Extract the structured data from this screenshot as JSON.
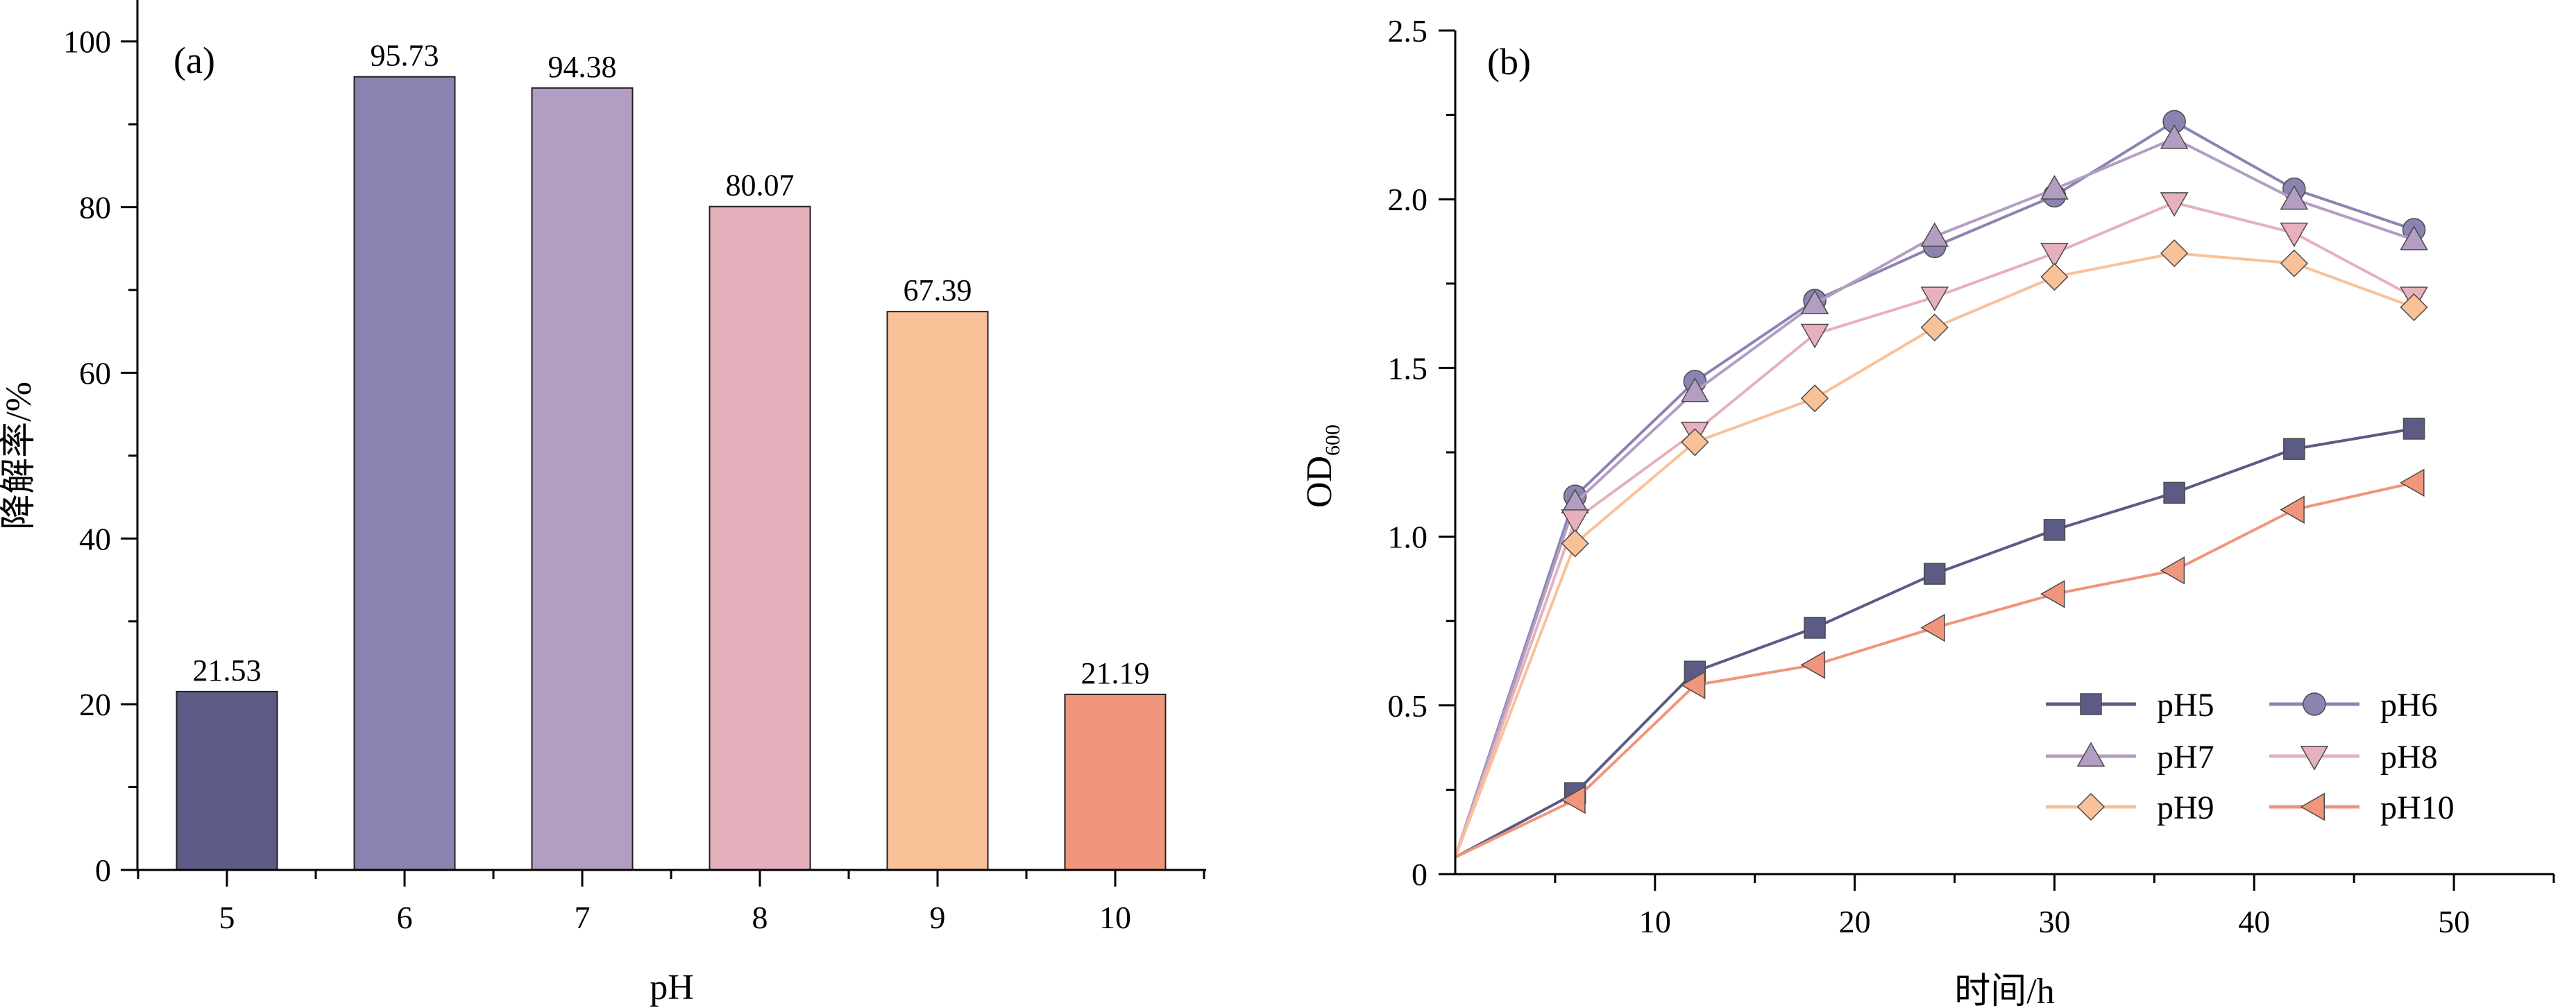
{
  "chart_data": [
    {
      "type": "bar",
      "panel_label": "(a)",
      "categories": [
        "5",
        "6",
        "7",
        "8",
        "9",
        "10"
      ],
      "values": [
        21.53,
        95.73,
        94.38,
        80.07,
        67.39,
        21.19
      ],
      "data_labels": [
        "21.53",
        "95.73",
        "94.38",
        "80.07",
        "67.39",
        "21.19"
      ],
      "colors": [
        "#5b5b86",
        "#8b84b1",
        "#b39dc2",
        "#e6b0bd",
        "#f9c198",
        "#ef967c"
      ],
      "xlabel": "pH",
      "ylabel": "降解率/%",
      "ylim": [
        0,
        105
      ],
      "yticks": [
        "0",
        "20",
        "40",
        "60",
        "80",
        "100"
      ],
      "grid": false
    },
    {
      "type": "line",
      "panel_label": "(b)",
      "x": [
        0,
        6,
        12,
        18,
        24,
        30,
        36,
        42,
        48
      ],
      "series": [
        {
          "name": "pH5",
          "color": "#5b5b86",
          "marker": "square",
          "values": [
            0.05,
            0.24,
            0.6,
            0.73,
            0.89,
            1.02,
            1.13,
            1.26,
            1.32
          ]
        },
        {
          "name": "pH6",
          "color": "#8b84b1",
          "marker": "circle",
          "values": [
            0.05,
            1.12,
            1.46,
            1.7,
            1.86,
            2.01,
            2.23,
            2.03,
            1.91
          ]
        },
        {
          "name": "pH7",
          "color": "#b39dc2",
          "marker": "triangle-up",
          "values": [
            0.05,
            1.1,
            1.43,
            1.69,
            1.89,
            2.03,
            2.18,
            2.0,
            1.88
          ]
        },
        {
          "name": "pH8",
          "color": "#e6b0bd",
          "marker": "triangle-down",
          "values": [
            0.05,
            1.05,
            1.31,
            1.6,
            1.71,
            1.84,
            1.99,
            1.9,
            1.71
          ]
        },
        {
          "name": "pH9",
          "color": "#f9c198",
          "marker": "diamond",
          "values": [
            0.05,
            0.98,
            1.28,
            1.41,
            1.62,
            1.77,
            1.84,
            1.81,
            1.68
          ]
        },
        {
          "name": "pH10",
          "color": "#ef967c",
          "marker": "triangle-left",
          "values": [
            0.05,
            0.22,
            0.56,
            0.62,
            0.73,
            0.83,
            0.9,
            1.08,
            1.16
          ]
        }
      ],
      "xlabel": "时间/h",
      "ylabel_main": "OD",
      "ylabel_sub": "600",
      "xlim": [
        0,
        55
      ],
      "ylim": [
        0,
        2.5
      ],
      "xticks": [
        "10",
        "20",
        "30",
        "40",
        "50"
      ],
      "yticks": [
        "0",
        "0.5",
        "1.0",
        "1.5",
        "2.0",
        "2.5"
      ],
      "legend_position": "bottom-right",
      "grid": false
    }
  ]
}
